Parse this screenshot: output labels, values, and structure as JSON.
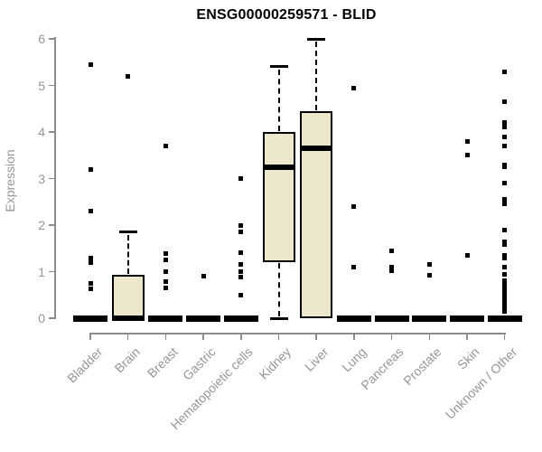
{
  "header": {
    "title": "ENSG00000259571 - BLID"
  },
  "colors": {
    "background": "#ffffff",
    "box_fill": "#ede8cd",
    "box_line": "#000000",
    "axis_line": "#8c8c8c",
    "label_text": "#969696",
    "title_text": "#000000"
  },
  "chart_data": {
    "type": "boxplot",
    "title": "ENSG00000259571 - BLID",
    "xlabel": "",
    "ylabel": "Expression",
    "ylim": [
      0,
      6
    ],
    "yticks": [
      0,
      1,
      2,
      3,
      4,
      5,
      6
    ],
    "grid": false,
    "legend": null,
    "categories": [
      "Bladder",
      "Brain",
      "Breast",
      "Gastric",
      "Hematopoietic cells",
      "Kidney",
      "Liver",
      "Lung",
      "Pancreas",
      "Prostate",
      "Skin",
      "Unknown / Other"
    ],
    "series": [
      {
        "category": "Bladder",
        "min": 0,
        "q1": 0,
        "median": 0,
        "q3": 0,
        "max": 0,
        "outliers": [
          5.45,
          3.2,
          2.3,
          1.3,
          1.2,
          0.75,
          0.63
        ]
      },
      {
        "category": "Brain",
        "min": 0,
        "q1": 0,
        "median": 0,
        "q3": 0.93,
        "max": 1.85,
        "outliers": [
          5.2
        ]
      },
      {
        "category": "Breast",
        "min": 0,
        "q1": 0,
        "median": 0,
        "q3": 0,
        "max": 0,
        "outliers": [
          3.7,
          1.38,
          1.26,
          1.0,
          0.78,
          0.66
        ]
      },
      {
        "category": "Gastric",
        "min": 0,
        "q1": 0,
        "median": 0,
        "q3": 0,
        "max": 0,
        "outliers": [
          0.9
        ]
      },
      {
        "category": "Hematopoietic cells",
        "min": 0,
        "q1": 0,
        "median": 0,
        "q3": 0,
        "max": 0,
        "outliers": [
          3.0,
          2.0,
          1.85,
          1.4,
          1.15,
          1.0,
          0.88,
          0.5
        ]
      },
      {
        "category": "Kidney",
        "min": 0,
        "q1": 1.2,
        "median": 3.25,
        "q3": 4.0,
        "max": 5.4,
        "outliers": []
      },
      {
        "category": "Liver",
        "min": 0,
        "q1": 0,
        "median": 3.65,
        "q3": 4.45,
        "max": 6.0,
        "outliers": []
      },
      {
        "category": "Lung",
        "min": 0,
        "q1": 0,
        "median": 0,
        "q3": 0,
        "max": 0,
        "outliers": [
          4.95,
          2.4,
          1.1
        ]
      },
      {
        "category": "Pancreas",
        "min": 0,
        "q1": 0,
        "median": 0,
        "q3": 0,
        "max": 0,
        "outliers": [
          1.45,
          1.1,
          1.02
        ]
      },
      {
        "category": "Prostate",
        "min": 0,
        "q1": 0,
        "median": 0,
        "q3": 0,
        "max": 0,
        "outliers": [
          1.15,
          0.93
        ]
      },
      {
        "category": "Skin",
        "min": 0,
        "q1": 0,
        "median": 0,
        "q3": 0,
        "max": 0,
        "outliers": [
          3.8,
          3.5,
          1.35
        ]
      },
      {
        "category": "Unknown / Other",
        "min": 0,
        "q1": 0,
        "median": 0,
        "q3": 0,
        "max": 0,
        "outliers": [
          5.3,
          4.65,
          4.2,
          4.1,
          3.9,
          3.7,
          3.3,
          3.25,
          2.9,
          2.55,
          2.5,
          2.45,
          1.9,
          1.65,
          1.58,
          1.35,
          1.3,
          1.1,
          0.95,
          0.8,
          0.72,
          0.66,
          0.6,
          0.55,
          0.5,
          0.45,
          0.4,
          0.35,
          0.3,
          0.25,
          0.2,
          0.15
        ]
      }
    ]
  }
}
